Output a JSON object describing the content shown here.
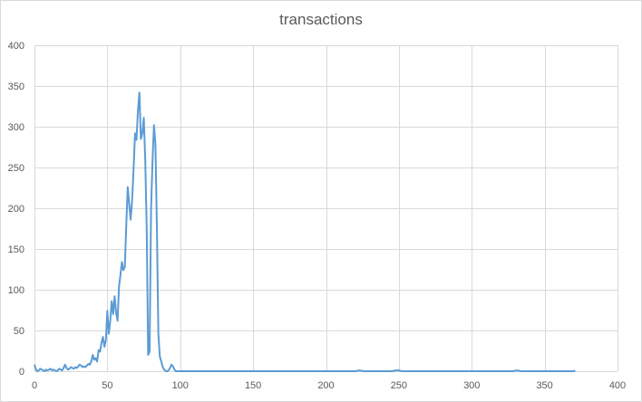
{
  "chart_data": {
    "type": "line",
    "title": "transactions",
    "xlabel": "",
    "ylabel": "",
    "xlim": [
      0,
      400
    ],
    "ylim": [
      0,
      400
    ],
    "x_ticks": [
      0,
      50,
      100,
      150,
      200,
      250,
      300,
      350,
      400
    ],
    "y_ticks": [
      0,
      50,
      100,
      150,
      200,
      250,
      300,
      350,
      400
    ],
    "grid": true,
    "legend": "none",
    "series_color": "#5b9bd5",
    "series": [
      {
        "values": [
          [
            0,
            8
          ],
          [
            1,
            2
          ],
          [
            2,
            0
          ],
          [
            3,
            1
          ],
          [
            4,
            3
          ],
          [
            5,
            2
          ],
          [
            6,
            1
          ],
          [
            7,
            0
          ],
          [
            8,
            2
          ],
          [
            9,
            1
          ],
          [
            10,
            2
          ],
          [
            11,
            3
          ],
          [
            12,
            1
          ],
          [
            13,
            2
          ],
          [
            14,
            1
          ],
          [
            15,
            0
          ],
          [
            16,
            1
          ],
          [
            17,
            3
          ],
          [
            18,
            2
          ],
          [
            19,
            1
          ],
          [
            20,
            4
          ],
          [
            21,
            8
          ],
          [
            22,
            4
          ],
          [
            23,
            2
          ],
          [
            24,
            3
          ],
          [
            25,
            5
          ],
          [
            26,
            4
          ],
          [
            27,
            3
          ],
          [
            28,
            5
          ],
          [
            29,
            4
          ],
          [
            30,
            6
          ],
          [
            31,
            8
          ],
          [
            32,
            7
          ],
          [
            33,
            5
          ],
          [
            34,
            6
          ],
          [
            35,
            5
          ],
          [
            36,
            7
          ],
          [
            37,
            9
          ],
          [
            38,
            8
          ],
          [
            39,
            12
          ],
          [
            40,
            20
          ],
          [
            41,
            14
          ],
          [
            42,
            16
          ],
          [
            43,
            12
          ],
          [
            44,
            26
          ],
          [
            45,
            24
          ],
          [
            46,
            35
          ],
          [
            47,
            42
          ],
          [
            48,
            30
          ],
          [
            49,
            38
          ],
          [
            50,
            74
          ],
          [
            51,
            46
          ],
          [
            52,
            62
          ],
          [
            53,
            86
          ],
          [
            54,
            70
          ],
          [
            55,
            92
          ],
          [
            56,
            72
          ],
          [
            57,
            62
          ],
          [
            58,
            104
          ],
          [
            59,
            118
          ],
          [
            60,
            134
          ],
          [
            61,
            124
          ],
          [
            62,
            128
          ],
          [
            63,
            180
          ],
          [
            64,
            226
          ],
          [
            65,
            205
          ],
          [
            66,
            186
          ],
          [
            67,
            210
          ],
          [
            68,
            248
          ],
          [
            69,
            292
          ],
          [
            70,
            284
          ],
          [
            71,
            320
          ],
          [
            72,
            342
          ],
          [
            73,
            285
          ],
          [
            74,
            292
          ],
          [
            75,
            311
          ],
          [
            76,
            260
          ],
          [
            77,
            176
          ],
          [
            78,
            20
          ],
          [
            79,
            24
          ],
          [
            80,
            200
          ],
          [
            81,
            258
          ],
          [
            82,
            302
          ],
          [
            83,
            278
          ],
          [
            84,
            176
          ],
          [
            85,
            46
          ],
          [
            86,
            18
          ],
          [
            87,
            12
          ],
          [
            88,
            5
          ],
          [
            89,
            2
          ],
          [
            90,
            0
          ],
          [
            91,
            0
          ],
          [
            92,
            1
          ],
          [
            93,
            4
          ],
          [
            94,
            8
          ],
          [
            95,
            6
          ],
          [
            96,
            2
          ],
          [
            97,
            0
          ],
          [
            98,
            0
          ],
          [
            100,
            0
          ],
          [
            120,
            0
          ],
          [
            140,
            0
          ],
          [
            160,
            0
          ],
          [
            180,
            0
          ],
          [
            200,
            0
          ],
          [
            220,
            0
          ],
          [
            223,
            1
          ],
          [
            226,
            0
          ],
          [
            245,
            0
          ],
          [
            248,
            1
          ],
          [
            250,
            1
          ],
          [
            252,
            0
          ],
          [
            270,
            0
          ],
          [
            290,
            0
          ],
          [
            310,
            0
          ],
          [
            328,
            0
          ],
          [
            331,
            1
          ],
          [
            334,
            0
          ],
          [
            350,
            0
          ],
          [
            370,
            0
          ],
          [
            371,
            1
          ]
        ]
      }
    ]
  }
}
